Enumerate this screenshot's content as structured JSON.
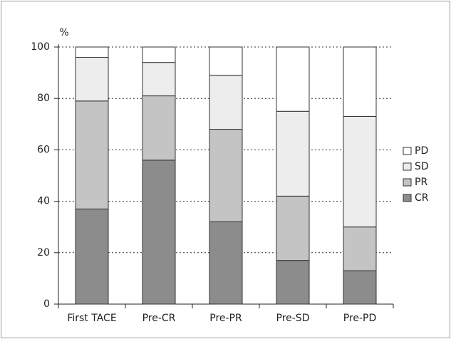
{
  "chart_data": {
    "type": "stacked-bar",
    "ylabel": "%",
    "categories": [
      "First TACE",
      "Pre-CR",
      "Pre-PR",
      "Pre-SD",
      "Pre-PD"
    ],
    "series": [
      {
        "name": "CR",
        "color": "#8c8c8c",
        "values": [
          37,
          56,
          32,
          17,
          13
        ]
      },
      {
        "name": "PR",
        "color": "#c4c4c4",
        "values": [
          42,
          25,
          36,
          25,
          17
        ]
      },
      {
        "name": "SD",
        "color": "#ededed",
        "values": [
          17,
          13,
          21,
          33,
          43
        ]
      },
      {
        "name": "PD",
        "color": "#ffffff",
        "values": [
          4,
          6,
          11,
          25,
          27
        ]
      }
    ],
    "ylim": [
      0,
      100
    ],
    "yticks": [
      0,
      20,
      40,
      60,
      80,
      100
    ],
    "grid": true,
    "legend": "right"
  }
}
